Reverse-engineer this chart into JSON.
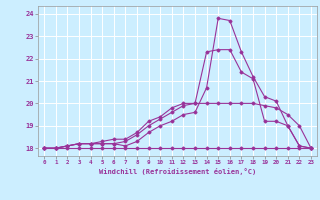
{
  "xlabel": "Windchill (Refroidissement éolien,°C)",
  "xlim": [
    -0.5,
    23.5
  ],
  "ylim": [
    17.65,
    24.35
  ],
  "xticks": [
    0,
    1,
    2,
    3,
    4,
    5,
    6,
    7,
    8,
    9,
    10,
    11,
    12,
    13,
    14,
    15,
    16,
    17,
    18,
    19,
    20,
    21,
    22,
    23
  ],
  "yticks": [
    18,
    19,
    20,
    21,
    22,
    23,
    24
  ],
  "background_color": "#cceeff",
  "grid_color": "#ffffff",
  "line_color": "#993399",
  "lines": [
    {
      "y": [
        18.0,
        18.0,
        18.0,
        18.0,
        18.0,
        18.0,
        18.0,
        18.0,
        18.0,
        18.0,
        18.0,
        18.0,
        18.0,
        18.0,
        18.0,
        18.0,
        18.0,
        18.0,
        18.0,
        18.0,
        18.0,
        18.0,
        18.0,
        18.0
      ]
    },
    {
      "y": [
        18.0,
        18.0,
        18.1,
        18.2,
        18.2,
        18.2,
        18.2,
        18.3,
        18.6,
        19.0,
        19.3,
        19.6,
        19.9,
        20.0,
        20.0,
        20.0,
        20.0,
        20.0,
        20.0,
        19.9,
        19.8,
        19.5,
        19.0,
        18.0
      ]
    },
    {
      "y": [
        18.0,
        18.0,
        18.1,
        18.2,
        18.2,
        18.3,
        18.4,
        18.4,
        18.7,
        19.2,
        19.4,
        19.8,
        20.0,
        20.0,
        22.3,
        22.4,
        22.4,
        21.4,
        21.1,
        19.2,
        19.2,
        19.0,
        18.1,
        18.0
      ]
    },
    {
      "y": [
        18.0,
        18.0,
        18.1,
        18.2,
        18.2,
        18.2,
        18.2,
        18.1,
        18.3,
        18.7,
        19.0,
        19.2,
        19.5,
        19.6,
        20.7,
        23.8,
        23.7,
        22.3,
        21.2,
        20.3,
        20.1,
        19.0,
        18.1,
        18.0
      ]
    }
  ]
}
